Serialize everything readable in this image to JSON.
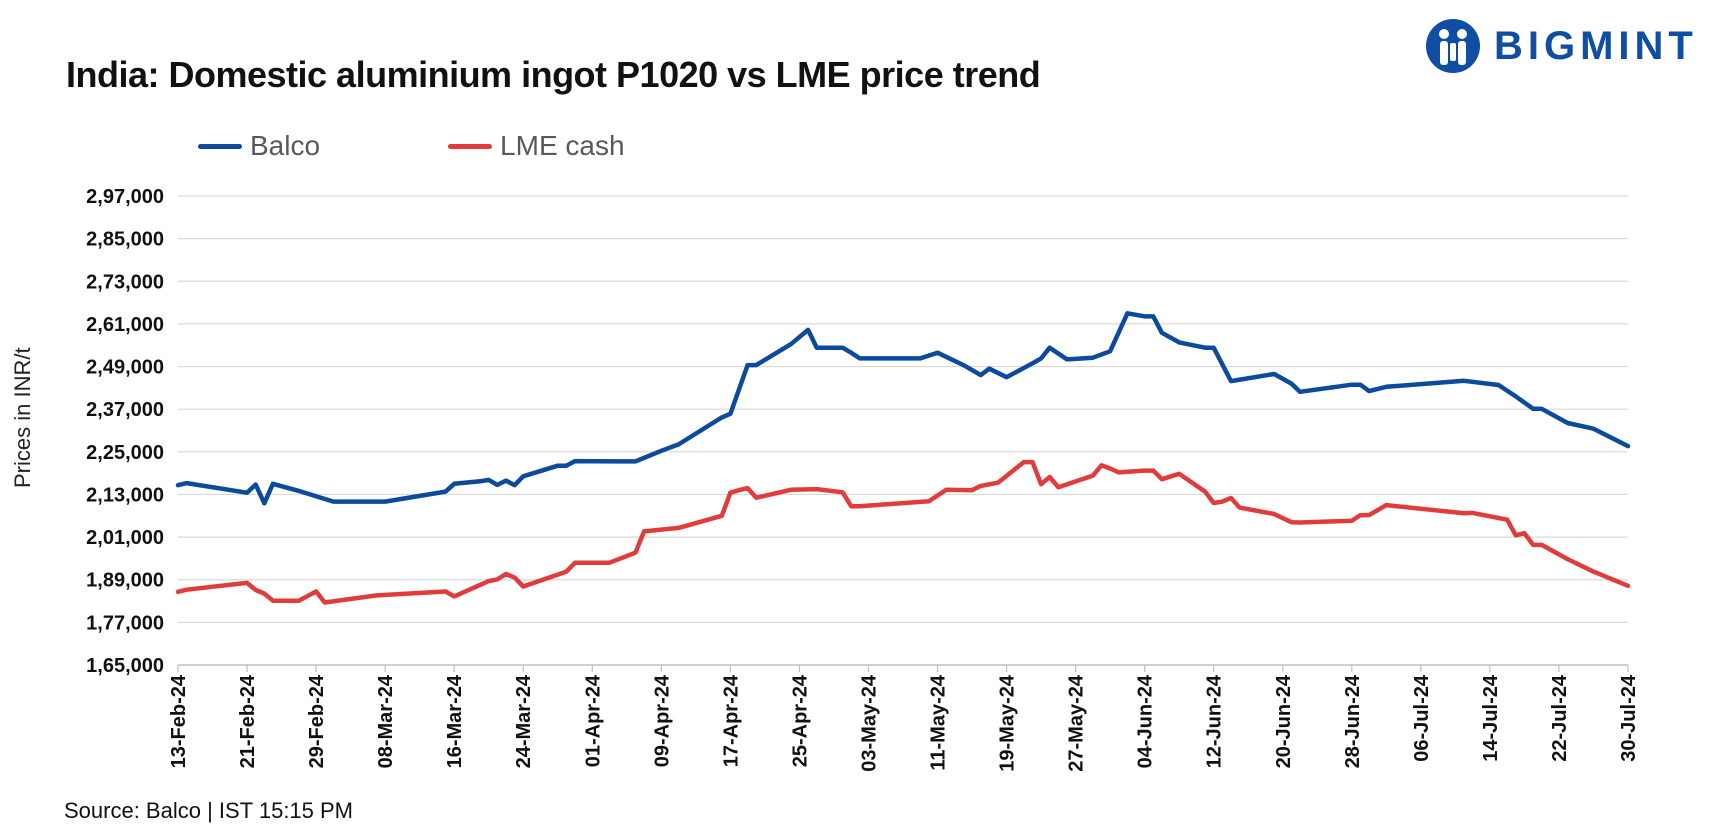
{
  "title": "India: Domestic aluminium ingot P1020 vs LME price trend",
  "brand": {
    "name": "BIGMINT",
    "color": "#0f4ea3"
  },
  "source": "Source: Balco | IST 15:15 PM",
  "colors": {
    "balco": "#0b4a9c",
    "lme": "#e03c3c",
    "grid": "#d9d9d9"
  },
  "chart_data": {
    "type": "line",
    "title": "India: Domestic aluminium ingot P1020 vs LME price trend",
    "xlabel": "",
    "ylabel": "Prices in INR/t",
    "ylim": [
      165000,
      297000
    ],
    "yticks": [
      165000,
      177000,
      189000,
      201000,
      213000,
      225000,
      237000,
      249000,
      261000,
      273000,
      285000,
      297000
    ],
    "ytick_labels": [
      "1,65,000",
      "1,77,000",
      "1,89,000",
      "2,01,000",
      "2,13,000",
      "2,25,000",
      "2,37,000",
      "2,49,000",
      "2,61,000",
      "2,73,000",
      "2,85,000",
      "2,97,000"
    ],
    "xlim": [
      "2024-02-13",
      "2024-07-30"
    ],
    "xtick_labels": [
      "13-Feb-24",
      "21-Feb-24",
      "29-Feb-24",
      "08-Mar-24",
      "16-Mar-24",
      "24-Mar-24",
      "01-Apr-24",
      "09-Apr-24",
      "17-Apr-24",
      "25-Apr-24",
      "03-May-24",
      "11-May-24",
      "19-May-24",
      "27-May-24",
      "04-Jun-24",
      "12-Jun-24",
      "20-Jun-24",
      "28-Jun-24",
      "06-Jul-24",
      "14-Jul-24",
      "22-Jul-24",
      "30-Jul-24"
    ],
    "grid": true,
    "legend_position": "top-left",
    "series": [
      {
        "name": "Balco",
        "color": "#0b4a9c",
        "points": [
          [
            "2024-02-13",
            215600
          ],
          [
            "2024-02-14",
            216200
          ],
          [
            "2024-02-21",
            213500
          ],
          [
            "2024-02-22",
            215800
          ],
          [
            "2024-02-23",
            210500
          ],
          [
            "2024-02-24",
            216000
          ],
          [
            "2024-02-27",
            214000
          ],
          [
            "2024-03-02",
            211000
          ],
          [
            "2024-03-08",
            211000
          ],
          [
            "2024-03-15",
            213800
          ],
          [
            "2024-03-16",
            216000
          ],
          [
            "2024-03-19",
            216700
          ],
          [
            "2024-03-20",
            217100
          ],
          [
            "2024-03-21",
            215700
          ],
          [
            "2024-03-22",
            216900
          ],
          [
            "2024-03-23",
            215600
          ],
          [
            "2024-03-24",
            218100
          ],
          [
            "2024-03-28",
            221100
          ],
          [
            "2024-03-29",
            221100
          ],
          [
            "2024-03-30",
            222400
          ],
          [
            "2024-04-04",
            222300
          ],
          [
            "2024-04-06",
            222300
          ],
          [
            "2024-04-09",
            225300
          ],
          [
            "2024-04-11",
            227100
          ],
          [
            "2024-04-16",
            234700
          ],
          [
            "2024-04-17",
            235700
          ],
          [
            "2024-04-19",
            249400
          ],
          [
            "2024-04-20",
            249400
          ],
          [
            "2024-04-24",
            255300
          ],
          [
            "2024-04-26",
            259300
          ],
          [
            "2024-04-27",
            254300
          ],
          [
            "2024-04-30",
            254300
          ],
          [
            "2024-05-01",
            252900
          ],
          [
            "2024-05-02",
            251300
          ],
          [
            "2024-05-09",
            251300
          ],
          [
            "2024-05-11",
            252900
          ],
          [
            "2024-05-14",
            249400
          ],
          [
            "2024-05-16",
            246600
          ],
          [
            "2024-05-17",
            248400
          ],
          [
            "2024-05-19",
            246000
          ],
          [
            "2024-05-22",
            249900
          ],
          [
            "2024-05-23",
            251300
          ],
          [
            "2024-05-24",
            254300
          ],
          [
            "2024-05-26",
            251000
          ],
          [
            "2024-05-29",
            251500
          ],
          [
            "2024-05-31",
            253300
          ],
          [
            "2024-06-02",
            264000
          ],
          [
            "2024-06-04",
            263100
          ],
          [
            "2024-06-05",
            263100
          ],
          [
            "2024-06-06",
            258500
          ],
          [
            "2024-06-08",
            255800
          ],
          [
            "2024-06-11",
            254300
          ],
          [
            "2024-06-12",
            254300
          ],
          [
            "2024-06-14",
            244900
          ],
          [
            "2024-06-19",
            246900
          ],
          [
            "2024-06-21",
            244200
          ],
          [
            "2024-06-22",
            241900
          ],
          [
            "2024-06-28",
            243900
          ],
          [
            "2024-06-29",
            243900
          ],
          [
            "2024-06-30",
            242100
          ],
          [
            "2024-07-02",
            243300
          ],
          [
            "2024-07-11",
            245000
          ],
          [
            "2024-07-15",
            243800
          ],
          [
            "2024-07-17",
            240600
          ],
          [
            "2024-07-19",
            237100
          ],
          [
            "2024-07-20",
            237100
          ],
          [
            "2024-07-23",
            233100
          ],
          [
            "2024-07-26",
            231500
          ],
          [
            "2024-07-30",
            226600
          ]
        ]
      },
      {
        "name": "LME cash",
        "color": "#e03c3c",
        "points": [
          [
            "2024-02-13",
            185600
          ],
          [
            "2024-02-14",
            186200
          ],
          [
            "2024-02-21",
            188100
          ],
          [
            "2024-02-22",
            186100
          ],
          [
            "2024-02-23",
            185100
          ],
          [
            "2024-02-24",
            183100
          ],
          [
            "2024-02-27",
            183100
          ],
          [
            "2024-02-29",
            185700
          ],
          [
            "2024-03-01",
            182600
          ],
          [
            "2024-03-07",
            184600
          ],
          [
            "2024-03-15",
            185700
          ],
          [
            "2024-03-16",
            184300
          ],
          [
            "2024-03-20",
            188600
          ],
          [
            "2024-03-21",
            189100
          ],
          [
            "2024-03-22",
            190600
          ],
          [
            "2024-03-23",
            189600
          ],
          [
            "2024-03-24",
            187100
          ],
          [
            "2024-03-29",
            191300
          ],
          [
            "2024-03-30",
            193800
          ],
          [
            "2024-04-03",
            193800
          ],
          [
            "2024-04-06",
            196600
          ],
          [
            "2024-04-07",
            202600
          ],
          [
            "2024-04-11",
            203600
          ],
          [
            "2024-04-16",
            207000
          ],
          [
            "2024-04-17",
            213500
          ],
          [
            "2024-04-18",
            214200
          ],
          [
            "2024-04-19",
            214800
          ],
          [
            "2024-04-20",
            212100
          ],
          [
            "2024-04-24",
            214300
          ],
          [
            "2024-04-27",
            214500
          ],
          [
            "2024-04-30",
            213600
          ],
          [
            "2024-05-01",
            209700
          ],
          [
            "2024-05-02",
            209700
          ],
          [
            "2024-05-10",
            211100
          ],
          [
            "2024-05-12",
            214300
          ],
          [
            "2024-05-15",
            214200
          ],
          [
            "2024-05-16",
            215400
          ],
          [
            "2024-05-18",
            216300
          ],
          [
            "2024-05-21",
            222100
          ],
          [
            "2024-05-22",
            222100
          ],
          [
            "2024-05-23",
            215900
          ],
          [
            "2024-05-24",
            217900
          ],
          [
            "2024-05-25",
            215000
          ],
          [
            "2024-05-29",
            218300
          ],
          [
            "2024-05-30",
            221200
          ],
          [
            "2024-05-31",
            220300
          ],
          [
            "2024-06-01",
            219200
          ],
          [
            "2024-06-04",
            219700
          ],
          [
            "2024-06-05",
            219700
          ],
          [
            "2024-06-06",
            217300
          ],
          [
            "2024-06-08",
            218800
          ],
          [
            "2024-06-11",
            213800
          ],
          [
            "2024-06-12",
            210600
          ],
          [
            "2024-06-13",
            211000
          ],
          [
            "2024-06-14",
            212000
          ],
          [
            "2024-06-15",
            209300
          ],
          [
            "2024-06-19",
            207500
          ],
          [
            "2024-06-21",
            205200
          ],
          [
            "2024-06-22",
            205100
          ],
          [
            "2024-06-28",
            205600
          ],
          [
            "2024-06-29",
            207200
          ],
          [
            "2024-06-30",
            207200
          ],
          [
            "2024-07-02",
            210000
          ],
          [
            "2024-07-11",
            207700
          ],
          [
            "2024-07-12",
            207800
          ],
          [
            "2024-07-16",
            205900
          ],
          [
            "2024-07-17",
            201500
          ],
          [
            "2024-07-18",
            202100
          ],
          [
            "2024-07-19",
            198800
          ],
          [
            "2024-07-20",
            198800
          ],
          [
            "2024-07-23",
            194800
          ],
          [
            "2024-07-26",
            191300
          ],
          [
            "2024-07-30",
            187300
          ]
        ]
      }
    ]
  }
}
